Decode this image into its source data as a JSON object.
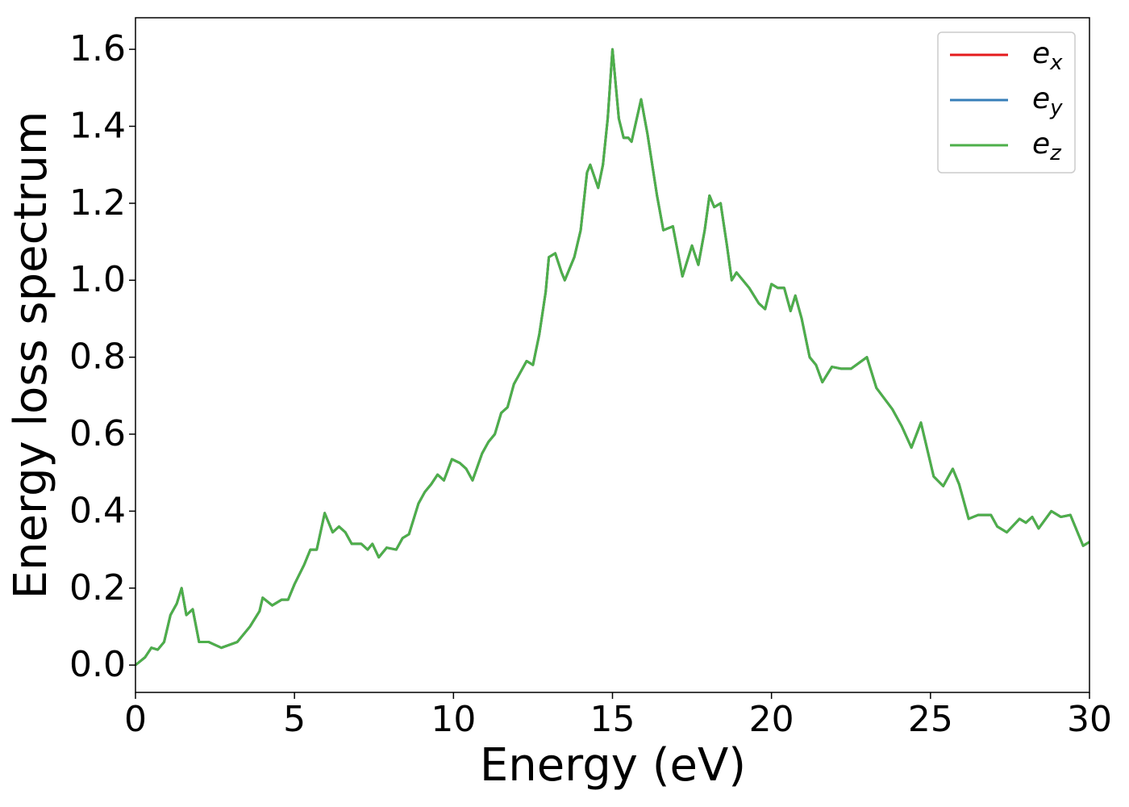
{
  "chart_data": {
    "type": "line",
    "xlabel": "Energy (eV)",
    "ylabel": "Energy loss spectrum",
    "x": [
      0,
      0.3,
      0.5,
      0.7,
      0.9,
      1.1,
      1.3,
      1.45,
      1.6,
      1.8,
      2.0,
      2.3,
      2.7,
      3.2,
      3.6,
      3.9,
      4.0,
      4.3,
      4.6,
      4.8,
      5.0,
      5.3,
      5.5,
      5.7,
      5.95,
      6.2,
      6.4,
      6.6,
      6.8,
      7.1,
      7.3,
      7.45,
      7.65,
      7.9,
      8.2,
      8.4,
      8.6,
      8.9,
      9.1,
      9.3,
      9.5,
      9.7,
      9.95,
      10.2,
      10.4,
      10.6,
      10.9,
      11.1,
      11.3,
      11.5,
      11.7,
      11.9,
      12.1,
      12.3,
      12.5,
      12.7,
      12.9,
      13.0,
      13.2,
      13.4,
      13.5,
      13.8,
      14.0,
      14.2,
      14.3,
      14.55,
      14.7,
      14.85,
      15.0,
      15.2,
      15.35,
      15.5,
      15.6,
      15.9,
      16.1,
      16.4,
      16.6,
      16.9,
      17.2,
      17.5,
      17.7,
      17.9,
      18.05,
      18.2,
      18.4,
      18.6,
      18.75,
      18.9,
      19.3,
      19.6,
      19.8,
      20.0,
      20.2,
      20.4,
      20.6,
      20.75,
      20.95,
      21.2,
      21.4,
      21.6,
      21.9,
      22.2,
      22.5,
      23.0,
      23.3,
      23.8,
      24.1,
      24.4,
      24.7,
      25.1,
      25.4,
      25.7,
      25.9,
      26.2,
      26.5,
      26.9,
      27.1,
      27.4,
      27.8,
      28.0,
      28.2,
      28.4,
      28.8,
      29.1,
      29.4,
      29.8,
      30.0
    ],
    "series": [
      {
        "name": "e_x",
        "color": "#e41a1c",
        "values": [
          0,
          0.02,
          0.045,
          0.04,
          0.06,
          0.13,
          0.16,
          0.2,
          0.13,
          0.145,
          0.06,
          0.06,
          0.045,
          0.06,
          0.1,
          0.14,
          0.175,
          0.155,
          0.17,
          0.17,
          0.21,
          0.26,
          0.3,
          0.3,
          0.395,
          0.345,
          0.36,
          0.345,
          0.315,
          0.315,
          0.3,
          0.315,
          0.28,
          0.305,
          0.3,
          0.33,
          0.34,
          0.42,
          0.45,
          0.47,
          0.495,
          0.48,
          0.535,
          0.525,
          0.51,
          0.48,
          0.55,
          0.58,
          0.6,
          0.655,
          0.67,
          0.73,
          0.76,
          0.79,
          0.78,
          0.86,
          0.97,
          1.06,
          1.07,
          1.02,
          1.0,
          1.06,
          1.13,
          1.28,
          1.3,
          1.24,
          1.3,
          1.42,
          1.6,
          1.42,
          1.37,
          1.37,
          1.36,
          1.47,
          1.38,
          1.22,
          1.13,
          1.14,
          1.01,
          1.09,
          1.04,
          1.13,
          1.22,
          1.19,
          1.2,
          1.09,
          1.0,
          1.02,
          0.98,
          0.94,
          0.925,
          0.99,
          0.98,
          0.98,
          0.92,
          0.96,
          0.9,
          0.8,
          0.78,
          0.735,
          0.775,
          0.77,
          0.77,
          0.8,
          0.72,
          0.665,
          0.62,
          0.565,
          0.63,
          0.49,
          0.465,
          0.51,
          0.47,
          0.38,
          0.39,
          0.39,
          0.36,
          0.345,
          0.38,
          0.37,
          0.385,
          0.355,
          0.4,
          0.385,
          0.39,
          0.31,
          0.32
        ]
      },
      {
        "name": "e_y",
        "color": "#377eb8",
        "values": [
          0,
          0.02,
          0.045,
          0.04,
          0.06,
          0.13,
          0.16,
          0.2,
          0.13,
          0.145,
          0.06,
          0.06,
          0.045,
          0.06,
          0.1,
          0.14,
          0.175,
          0.155,
          0.17,
          0.17,
          0.21,
          0.26,
          0.3,
          0.3,
          0.395,
          0.345,
          0.36,
          0.345,
          0.315,
          0.315,
          0.3,
          0.315,
          0.28,
          0.305,
          0.3,
          0.33,
          0.34,
          0.42,
          0.45,
          0.47,
          0.495,
          0.48,
          0.535,
          0.525,
          0.51,
          0.48,
          0.55,
          0.58,
          0.6,
          0.655,
          0.67,
          0.73,
          0.76,
          0.79,
          0.78,
          0.86,
          0.97,
          1.06,
          1.07,
          1.02,
          1.0,
          1.06,
          1.13,
          1.28,
          1.3,
          1.24,
          1.3,
          1.42,
          1.6,
          1.42,
          1.37,
          1.37,
          1.36,
          1.47,
          1.38,
          1.22,
          1.13,
          1.14,
          1.01,
          1.09,
          1.04,
          1.13,
          1.22,
          1.19,
          1.2,
          1.09,
          1.0,
          1.02,
          0.98,
          0.94,
          0.925,
          0.99,
          0.98,
          0.98,
          0.92,
          0.96,
          0.9,
          0.8,
          0.78,
          0.735,
          0.775,
          0.77,
          0.77,
          0.8,
          0.72,
          0.665,
          0.62,
          0.565,
          0.63,
          0.49,
          0.465,
          0.51,
          0.47,
          0.38,
          0.39,
          0.39,
          0.36,
          0.345,
          0.38,
          0.37,
          0.385,
          0.355,
          0.4,
          0.385,
          0.39,
          0.31,
          0.32
        ]
      },
      {
        "name": "e_z",
        "color": "#4daf4a",
        "values": [
          0,
          0.02,
          0.045,
          0.04,
          0.06,
          0.13,
          0.16,
          0.2,
          0.13,
          0.145,
          0.06,
          0.06,
          0.045,
          0.06,
          0.1,
          0.14,
          0.175,
          0.155,
          0.17,
          0.17,
          0.21,
          0.26,
          0.3,
          0.3,
          0.395,
          0.345,
          0.36,
          0.345,
          0.315,
          0.315,
          0.3,
          0.315,
          0.28,
          0.305,
          0.3,
          0.33,
          0.34,
          0.42,
          0.45,
          0.47,
          0.495,
          0.48,
          0.535,
          0.525,
          0.51,
          0.48,
          0.55,
          0.58,
          0.6,
          0.655,
          0.67,
          0.73,
          0.76,
          0.79,
          0.78,
          0.86,
          0.97,
          1.06,
          1.07,
          1.02,
          1.0,
          1.06,
          1.13,
          1.28,
          1.3,
          1.24,
          1.3,
          1.42,
          1.6,
          1.42,
          1.37,
          1.37,
          1.36,
          1.47,
          1.38,
          1.22,
          1.13,
          1.14,
          1.01,
          1.09,
          1.04,
          1.13,
          1.22,
          1.19,
          1.2,
          1.09,
          1.0,
          1.02,
          0.98,
          0.94,
          0.925,
          0.99,
          0.98,
          0.98,
          0.92,
          0.96,
          0.9,
          0.8,
          0.78,
          0.735,
          0.775,
          0.77,
          0.77,
          0.8,
          0.72,
          0.665,
          0.62,
          0.565,
          0.63,
          0.49,
          0.465,
          0.51,
          0.47,
          0.38,
          0.39,
          0.39,
          0.36,
          0.345,
          0.38,
          0.37,
          0.385,
          0.355,
          0.4,
          0.385,
          0.39,
          0.31,
          0.32
        ]
      }
    ],
    "xlim": [
      0,
      30
    ],
    "xticks": [
      0,
      5,
      10,
      15,
      20,
      25,
      30
    ],
    "ylim": [
      -0.071,
      1.682
    ],
    "yticks": [
      {
        "value": 0,
        "label": "0.0"
      },
      0.2,
      0.4,
      0.6,
      0.8,
      {
        "value": 1,
        "label": "1.0"
      },
      1.2,
      1.4,
      1.6
    ],
    "grid": false,
    "legend": "upper right"
  }
}
